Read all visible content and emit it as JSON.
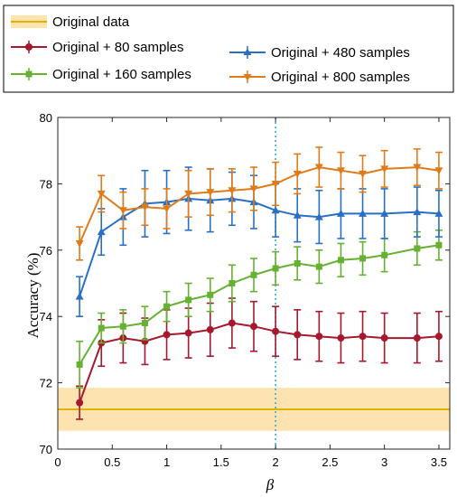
{
  "chart_data": {
    "type": "line",
    "xlabel": "β",
    "ylabel": "Accuracy (%)",
    "xlim": [
      0,
      3.6
    ],
    "ylim": [
      70,
      80
    ],
    "xticks": [
      0,
      0.5,
      1,
      1.5,
      2,
      2.5,
      3,
      3.5
    ],
    "yticks": [
      70,
      72,
      74,
      76,
      78,
      80
    ],
    "xtick_labels": [
      "0",
      "0.5",
      "1",
      "1.5",
      "2",
      "2.5",
      "3",
      "3.5"
    ],
    "ytick_labels": [
      "70",
      "72",
      "74",
      "76",
      "78",
      "80"
    ],
    "vline": {
      "x": 2,
      "color": "#2aa8d8",
      "style": "dotted"
    },
    "baseline": {
      "name": "Original data",
      "mean": 71.2,
      "lower": 70.55,
      "upper": 71.85,
      "color": "#e6b000",
      "band_color": "#fce3b0"
    },
    "x": [
      0.2,
      0.4,
      0.6,
      0.8,
      1.0,
      1.2,
      1.4,
      1.6,
      1.8,
      2.0,
      2.2,
      2.4,
      2.6,
      2.8,
      3.0,
      3.3,
      3.5
    ],
    "series": [
      {
        "name": "Original + 80 samples",
        "color": "#a5182d",
        "marker": "circle",
        "values": [
          71.4,
          73.2,
          73.35,
          73.25,
          73.45,
          73.5,
          73.6,
          73.8,
          73.7,
          73.55,
          73.45,
          73.4,
          73.35,
          73.4,
          73.35,
          73.35,
          73.4
        ],
        "errors": [
          0.5,
          0.7,
          0.75,
          0.7,
          0.75,
          0.75,
          0.8,
          0.75,
          0.75,
          0.75,
          0.75,
          0.75,
          0.75,
          0.75,
          0.75,
          0.75,
          0.75
        ]
      },
      {
        "name": "Original + 160 samples",
        "color": "#66b032",
        "marker": "square",
        "values": [
          72.55,
          73.65,
          73.7,
          73.8,
          74.3,
          74.5,
          74.65,
          75.0,
          75.25,
          75.45,
          75.6,
          75.5,
          75.7,
          75.75,
          75.85,
          76.05,
          76.15
        ],
        "errors": [
          0.7,
          0.45,
          0.5,
          0.5,
          0.45,
          0.5,
          0.5,
          0.55,
          0.5,
          0.5,
          0.5,
          0.5,
          0.5,
          0.5,
          0.5,
          0.5,
          0.45
        ]
      },
      {
        "name": "Original + 480 samples",
        "color": "#2970c4",
        "marker": "triangle-up",
        "values": [
          74.6,
          76.55,
          77.0,
          77.4,
          77.45,
          77.55,
          77.5,
          77.55,
          77.45,
          77.2,
          77.05,
          77.0,
          77.1,
          77.1,
          77.1,
          77.15,
          77.1
        ],
        "errors": [
          0.6,
          0.7,
          0.85,
          1.0,
          0.95,
          0.95,
          0.95,
          0.8,
          0.8,
          0.8,
          0.8,
          0.8,
          0.75,
          0.75,
          0.75,
          0.75,
          0.7
        ]
      },
      {
        "name": "Original + 800 samples",
        "color": "#e07b1a",
        "marker": "triangle-down",
        "values": [
          76.2,
          77.7,
          77.2,
          77.3,
          77.25,
          77.7,
          77.75,
          77.8,
          77.85,
          78.0,
          78.3,
          78.5,
          78.4,
          78.3,
          78.45,
          78.5,
          78.4
        ],
        "errors": [
          0.5,
          0.55,
          0.55,
          0.55,
          0.6,
          0.7,
          0.7,
          0.65,
          0.65,
          0.65,
          0.6,
          0.6,
          0.55,
          0.55,
          0.55,
          0.55,
          0.55
        ]
      }
    ],
    "legend": {
      "placement": "top",
      "entries": [
        "Original data",
        "Original + 80 samples",
        "Original + 160 samples",
        "Original + 480 samples",
        "Original + 800 samples"
      ]
    },
    "grid": false
  }
}
